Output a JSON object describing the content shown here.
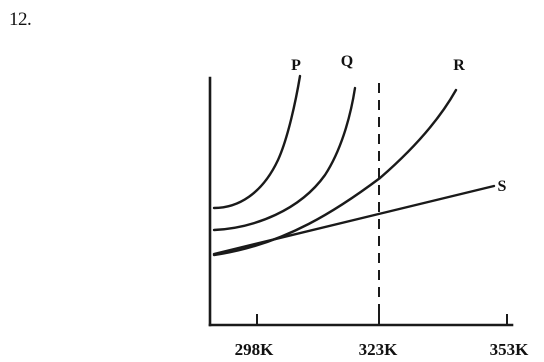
{
  "question_number": "12.",
  "chart_data": {
    "type": "line",
    "title": "",
    "xlabel": "",
    "ylabel": "",
    "x_tick_labels": [
      "298K",
      "323K",
      "353K"
    ],
    "reference_line": {
      "style": "dashed",
      "at_x_label": "323K"
    },
    "series": [
      {
        "name": "P",
        "shape": "steep exponential"
      },
      {
        "name": "Q",
        "shape": "exponential"
      },
      {
        "name": "R",
        "shape": "gradual exponential"
      },
      {
        "name": "S",
        "shape": "linear"
      }
    ]
  }
}
